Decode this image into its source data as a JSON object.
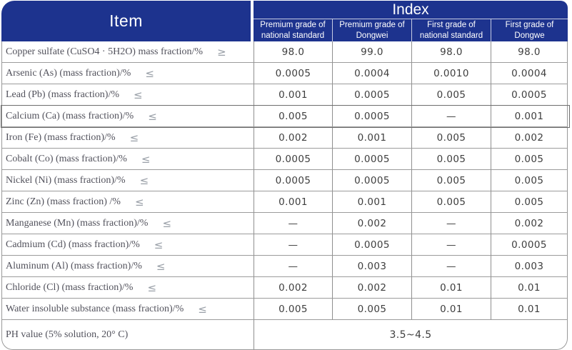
{
  "colors": {
    "header_bg": "#1d338e",
    "header_text": "#ffffff",
    "grid_h": "#9b9b9b",
    "grid_v": "#8f8f8f",
    "outer_border": "#999999",
    "label_text": "#52525c",
    "value_text": "#3e3e3e",
    "operator": "#9aa0a8",
    "highlight_border": "#6e6e6e"
  },
  "header": {
    "item_label": "Item",
    "index_label": "Index",
    "columns": [
      "Premium grade of national standard",
      "Premium grade of Dongwei",
      "First grade of national standard",
      "First grade of Dongwe"
    ]
  },
  "rows": [
    {
      "label": "Copper sulfate (CuSO4 · 5H2O) mass fraction/%",
      "op": "≥",
      "values": [
        "98.0",
        "99.0",
        "98.0",
        "98.0"
      ]
    },
    {
      "label": "Arsenic (As) (mass fraction)/%",
      "op": "≤",
      "values": [
        "0.0005",
        "0.0004",
        "0.0010",
        "0.0004"
      ]
    },
    {
      "label": "Lead (Pb) (mass fraction)/%",
      "op": "≤",
      "values": [
        "0.001",
        "0.0005",
        "0.005",
        "0.0005"
      ]
    },
    {
      "label": "Calcium (Ca) (mass fraction)/%",
      "op": "≤",
      "values": [
        "0.005",
        "0.0005",
        "—",
        "0.001"
      ]
    },
    {
      "label": "Iron (Fe) (mass fraction)/%",
      "op": "≤",
      "values": [
        "0.002",
        "0.001",
        "0.005",
        "0.002"
      ]
    },
    {
      "label": "Cobalt (Co) (mass fraction)/%",
      "op": "≤",
      "values": [
        "0.0005",
        "0.0005",
        "0.005",
        "0.005"
      ]
    },
    {
      "label": "Nickel (Ni) (mass fraction)/%",
      "op": "≤",
      "values": [
        "0.0005",
        "0.0005",
        "0.005",
        "0.005"
      ]
    },
    {
      "label": "Zinc (Zn) (mass fraction) /%",
      "op": "≤",
      "values": [
        "0.001",
        "0.001",
        "0.005",
        "0.005"
      ]
    },
    {
      "label": "Manganese (Mn) (mass fraction)/%",
      "op": "≤",
      "values": [
        "—",
        "0.002",
        "—",
        "0.002"
      ]
    },
    {
      "label": "Cadmium (Cd) (mass fraction)/%",
      "op": "≤",
      "values": [
        "—",
        "0.0005",
        "—",
        "0.0005"
      ]
    },
    {
      "label": "Aluminum (Al) (mass fraction)/%",
      "op": "≤",
      "values": [
        "—",
        "0.003",
        "—",
        "0.003"
      ]
    },
    {
      "label": "Chloride (Cl) (mass fraction)/%",
      "op": "≤",
      "values": [
        "0.002",
        "0.002",
        "0.01",
        "0.01"
      ]
    },
    {
      "label": "Water insoluble substance (mass fraction)/%",
      "op": "≤",
      "values": [
        "0.005",
        "0.005",
        "0.01",
        "0.01"
      ]
    }
  ],
  "ph_row": {
    "label": "PH value (5% solution, 20° C)",
    "value": "3.5~4.5"
  },
  "highlight": {
    "row_index": 3
  }
}
